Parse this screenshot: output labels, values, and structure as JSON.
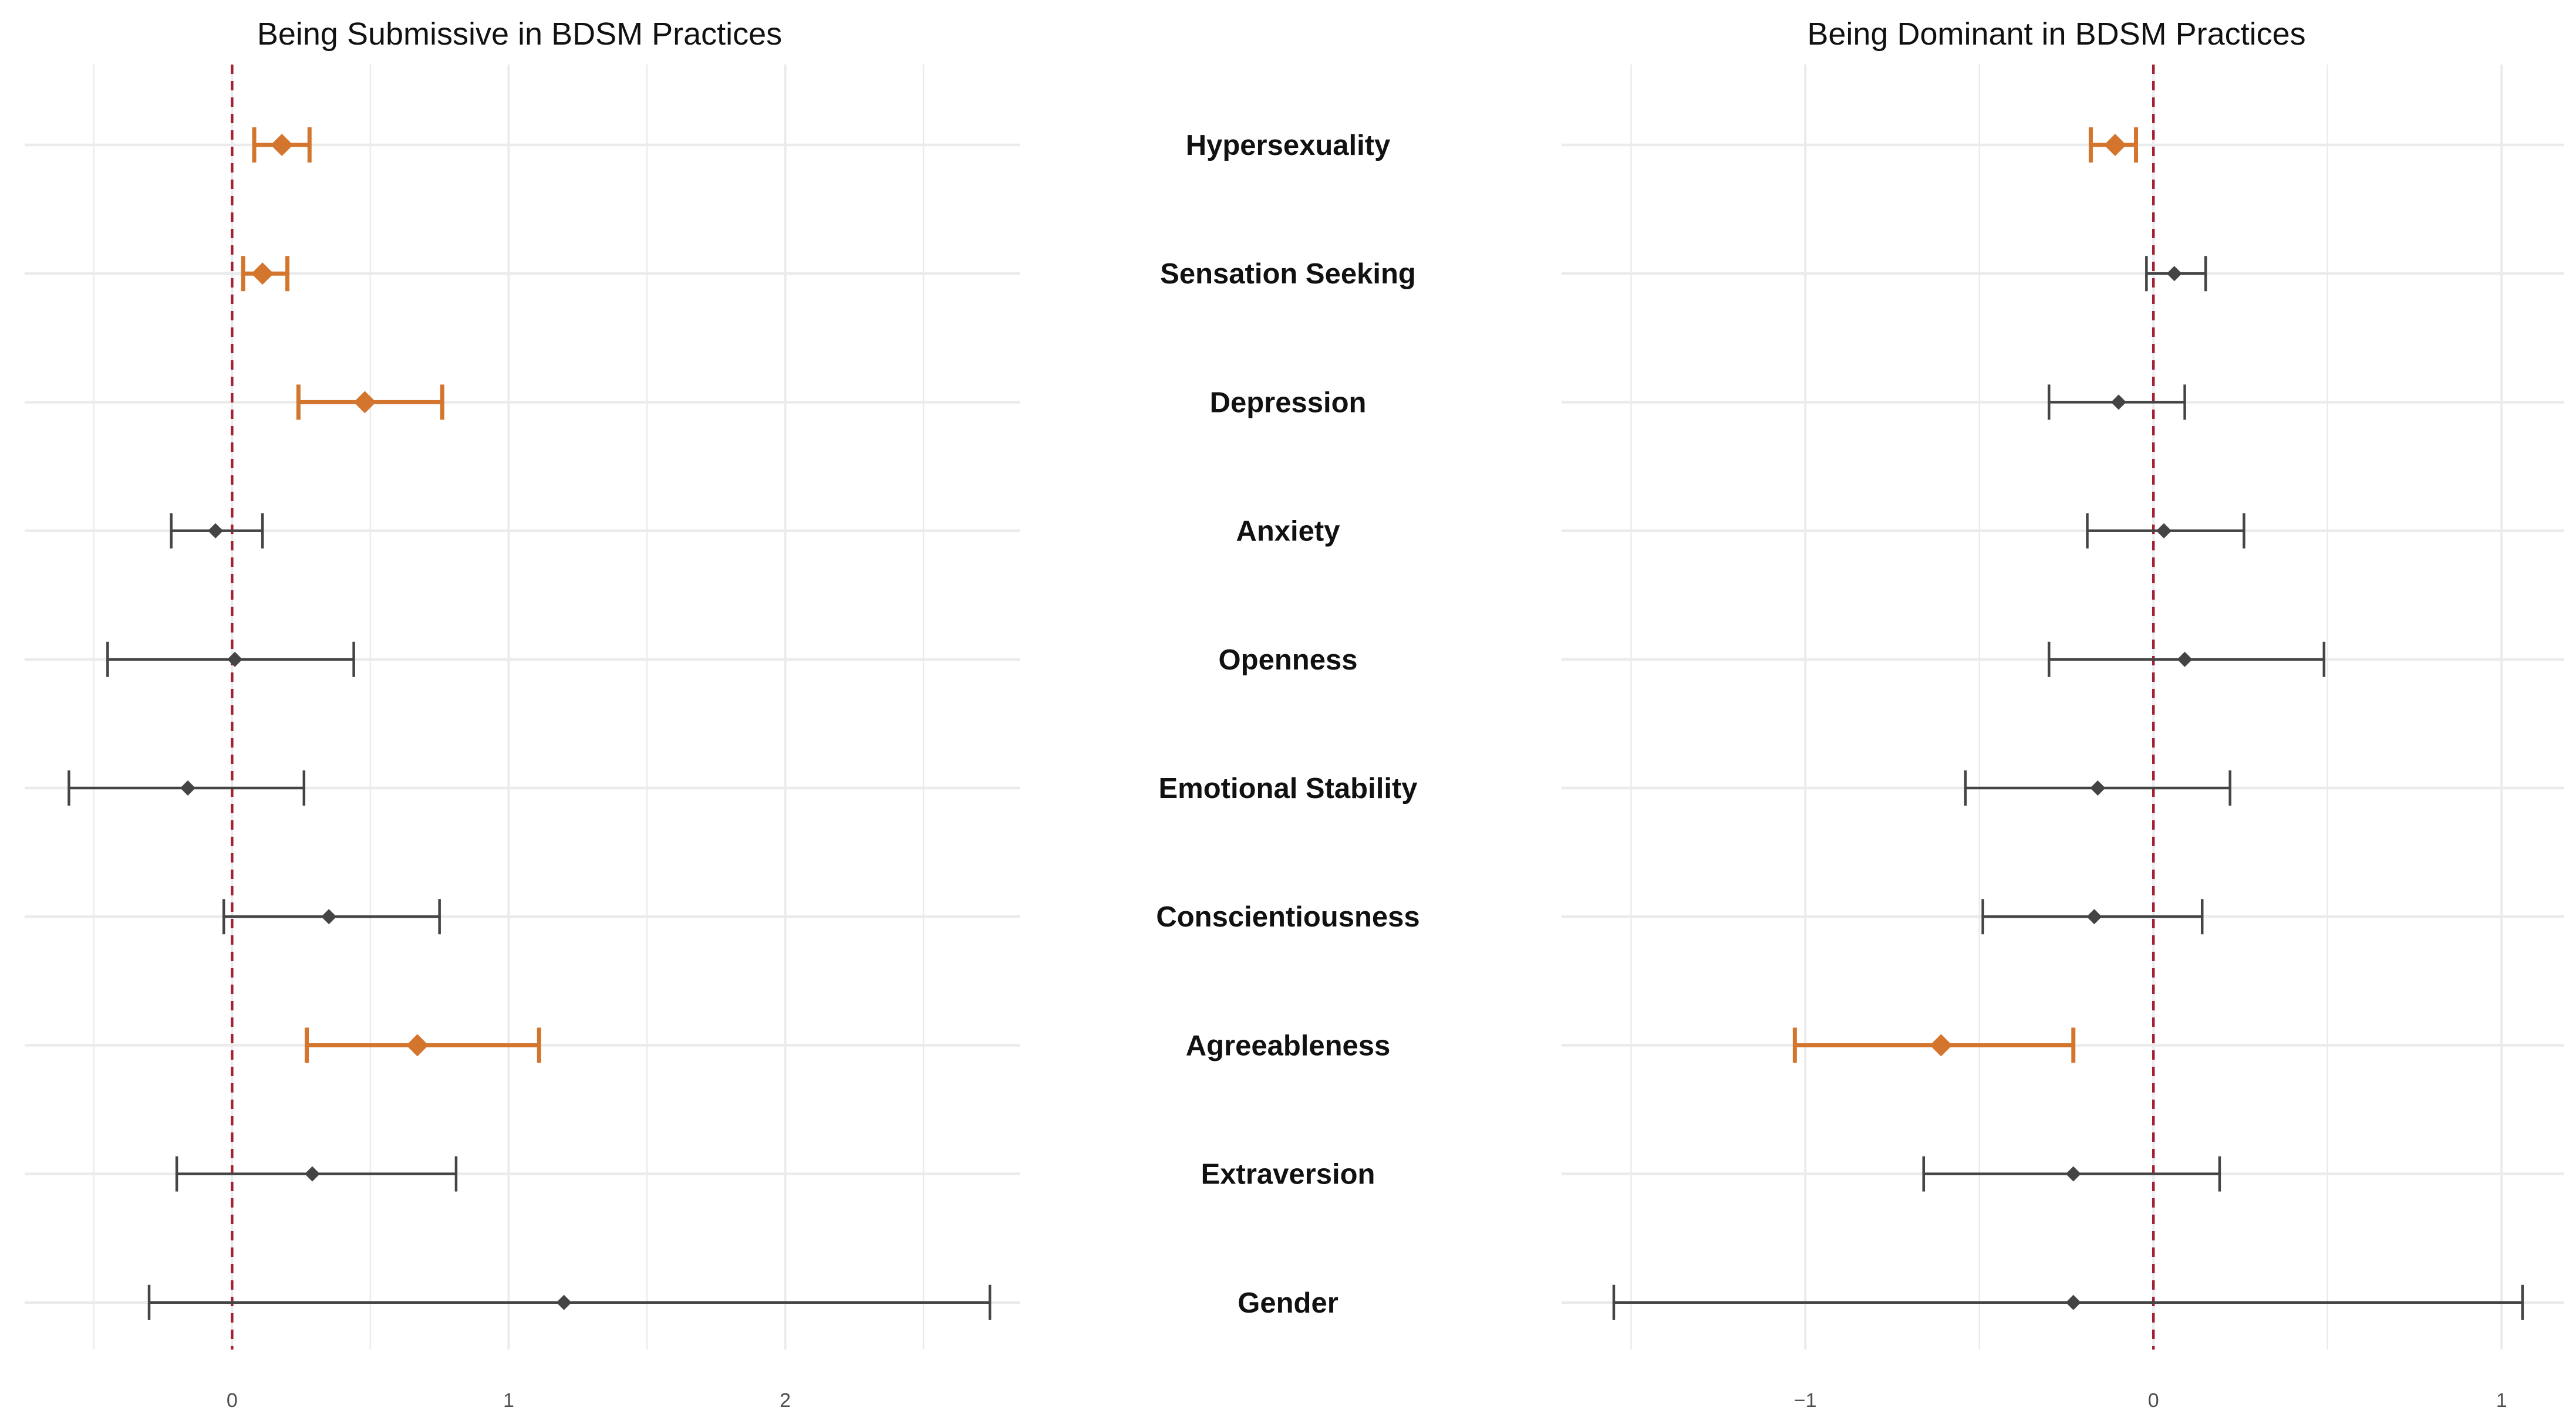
{
  "chart_data": [
    {
      "type": "forest",
      "title": "Being Submissive in BDSM Practices",
      "xlabel": "",
      "ylabel": "",
      "xlim": [
        -0.75,
        2.85
      ],
      "xticks": [
        0,
        1,
        2
      ],
      "tick_labels": [
        "0",
        "1",
        "2"
      ],
      "reference_line": 0,
      "grid": true,
      "rows": [
        {
          "label": "Hypersexuality",
          "estimate": 0.18,
          "lower": 0.08,
          "upper": 0.28,
          "significant": true
        },
        {
          "label": "Sensation Seeking",
          "estimate": 0.11,
          "lower": 0.04,
          "upper": 0.2,
          "significant": true
        },
        {
          "label": "Depression",
          "estimate": 0.48,
          "lower": 0.24,
          "upper": 0.76,
          "significant": true
        },
        {
          "label": "Anxiety",
          "estimate": -0.06,
          "lower": -0.22,
          "upper": 0.11,
          "significant": false
        },
        {
          "label": "Openness",
          "estimate": 0.01,
          "lower": -0.45,
          "upper": 0.44,
          "significant": false
        },
        {
          "label": "Emotional Stability",
          "estimate": -0.16,
          "lower": -0.59,
          "upper": 0.26,
          "significant": false
        },
        {
          "label": "Conscientiousness",
          "estimate": 0.35,
          "lower": -0.03,
          "upper": 0.75,
          "significant": false
        },
        {
          "label": "Agreeableness",
          "estimate": 0.67,
          "lower": 0.27,
          "upper": 1.11,
          "significant": true
        },
        {
          "label": "Extraversion",
          "estimate": 0.29,
          "lower": -0.2,
          "upper": 0.81,
          "significant": false
        },
        {
          "label": "Gender",
          "estimate": 1.2,
          "lower": -0.3,
          "upper": 2.74,
          "significant": false
        }
      ]
    },
    {
      "type": "forest",
      "title": "Being Dominant in BDSM Practices",
      "xlabel": "",
      "ylabel": "",
      "xlim": [
        -1.7,
        1.18
      ],
      "xticks": [
        -1,
        0,
        1
      ],
      "tick_labels": [
        "−1",
        "0",
        "1"
      ],
      "reference_line": 0,
      "grid": true,
      "rows": [
        {
          "label": "Hypersexuality",
          "estimate": -0.11,
          "lower": -0.18,
          "upper": -0.05,
          "significant": true
        },
        {
          "label": "Sensation Seeking",
          "estimate": 0.06,
          "lower": -0.02,
          "upper": 0.15,
          "significant": false
        },
        {
          "label": "Depression",
          "estimate": -0.1,
          "lower": -0.3,
          "upper": 0.09,
          "significant": false
        },
        {
          "label": "Anxiety",
          "estimate": 0.03,
          "lower": -0.19,
          "upper": 0.26,
          "significant": false
        },
        {
          "label": "Openness",
          "estimate": 0.09,
          "lower": -0.3,
          "upper": 0.49,
          "significant": false
        },
        {
          "label": "Emotional Stability",
          "estimate": -0.16,
          "lower": -0.54,
          "upper": 0.22,
          "significant": false
        },
        {
          "label": "Conscientiousness",
          "estimate": -0.17,
          "lower": -0.49,
          "upper": 0.14,
          "significant": false
        },
        {
          "label": "Agreeableness",
          "estimate": -0.61,
          "lower": -1.03,
          "upper": -0.23,
          "significant": true
        },
        {
          "label": "Extraversion",
          "estimate": -0.23,
          "lower": -0.66,
          "upper": 0.19,
          "significant": false
        },
        {
          "label": "Gender",
          "estimate": -0.23,
          "lower": -1.55,
          "upper": 1.06,
          "significant": false
        }
      ]
    }
  ],
  "colors": {
    "significant": "#d4752e",
    "nonsignificant": "#444444",
    "reference_line": "#a32035",
    "grid": "#ebebeb"
  }
}
